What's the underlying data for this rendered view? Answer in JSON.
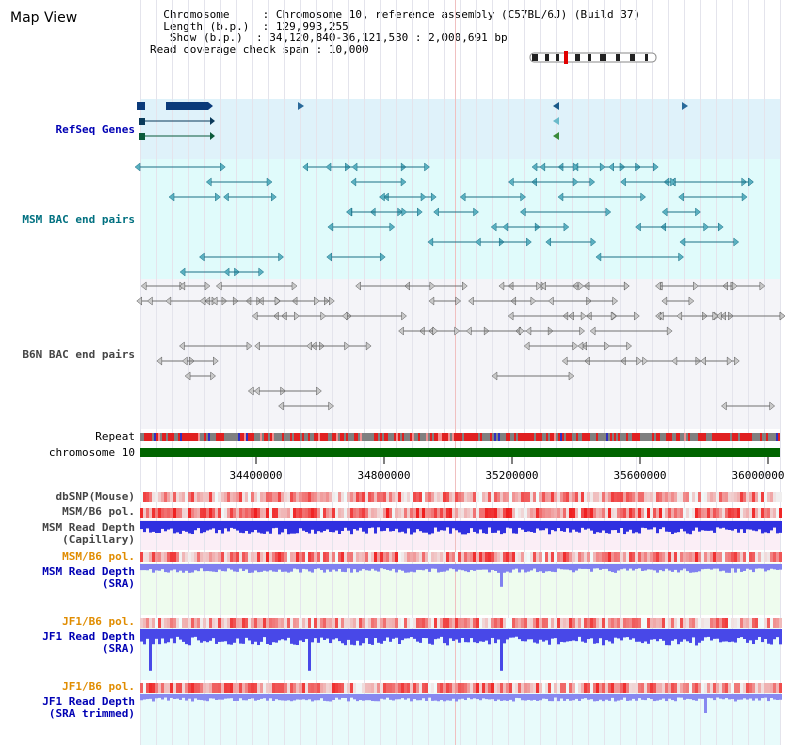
{
  "view": {
    "title": "Map View"
  },
  "info": {
    "chromosome_key": "Chromosome",
    "chromosome_value": "Chromosome 10, reference assembly (C57BL/6J) (Build 37)",
    "length_key": "Length (b.p.)",
    "length_value": "129,993,255",
    "show_key": "Show (b.p.)",
    "show_value": "34,120,840-36,121,530 : 2,000,691 bp",
    "span_key": "Read coverage check span",
    "span_value": "10,000"
  },
  "tracks": {
    "refseq": "RefSeq Genes",
    "msm_bac": "MSM BAC end pairs",
    "b6n_bac": "B6N BAC end pairs",
    "repeat": "Repeat",
    "chromosome": "chromosome 10",
    "dbsnp": "dbSNP(Mouse)",
    "msm_pol1": "MSM/B6 pol.",
    "msm_depth_cap_1": "MSM Read Depth",
    "msm_depth_cap_2": "(Capillary)",
    "msm_pol2": "MSM/B6 pol.",
    "msm_depth_sra_1": "MSM Read Depth",
    "msm_depth_sra_2": "(SRA)",
    "jf1_pol1": "JF1/B6 pol.",
    "jf1_depth_sra_1": "JF1 Read Depth",
    "jf1_depth_sra_2": "(SRA)",
    "jf1_pol2": "JF1/B6 pol.",
    "jf1_depth_trim_1": "JF1 Read Depth",
    "jf1_depth_trim_2": "(SRA trimmed)"
  },
  "axis": {
    "start_bp": 34120840,
    "end_bp": 36121530,
    "ticks": [
      "34400000",
      "34800000",
      "35200000",
      "35600000",
      "36000000"
    ]
  },
  "colors": {
    "refseq_bg": "#dff2fa",
    "msm_bg": "#e0fbfb",
    "b6n_bg": "#f4f4f8",
    "chromosome_bar": "#006400",
    "msm_line": "#1a6f86",
    "b6n_line": "#707070"
  }
}
